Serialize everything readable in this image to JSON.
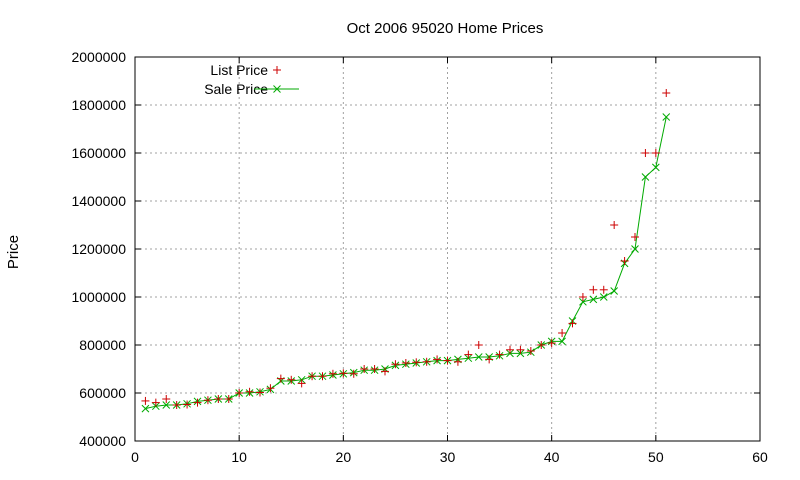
{
  "chart_data": {
    "type": "scatter",
    "title": "Oct 2006 95020 Home Prices",
    "xlabel": "",
    "ylabel": "Price",
    "xlim": [
      0,
      60
    ],
    "ylim": [
      400000,
      2000000
    ],
    "x_ticks": [
      0,
      10,
      20,
      30,
      40,
      50,
      60
    ],
    "y_ticks": [
      400000,
      600000,
      800000,
      1000000,
      1200000,
      1400000,
      1600000,
      1800000,
      2000000
    ],
    "grid": true,
    "legend_position": "top-left",
    "series": [
      {
        "name": "List Price",
        "style": "points",
        "marker": "+",
        "color": "#cc0000",
        "x": [
          1,
          2,
          3,
          4,
          5,
          6,
          7,
          8,
          9,
          10,
          11,
          12,
          13,
          14,
          15,
          16,
          17,
          18,
          19,
          20,
          21,
          22,
          23,
          24,
          25,
          26,
          27,
          28,
          29,
          30,
          31,
          32,
          33,
          34,
          35,
          36,
          37,
          38,
          39,
          40,
          41,
          42,
          43,
          44,
          45,
          46,
          47,
          48,
          49,
          50,
          51
        ],
        "y": [
          567000,
          560000,
          575000,
          550000,
          552000,
          560000,
          570000,
          575000,
          575000,
          600000,
          605000,
          602000,
          620000,
          660000,
          655000,
          640000,
          670000,
          670000,
          680000,
          682000,
          680000,
          700000,
          700000,
          690000,
          720000,
          725000,
          728000,
          730000,
          740000,
          735000,
          730000,
          760000,
          800000,
          740000,
          760000,
          780000,
          780000,
          775000,
          800000,
          808000,
          850000,
          890000,
          1000000,
          1030000,
          1030000,
          1300000,
          1150000,
          1250000,
          1600000,
          1600000,
          1850000
        ]
      },
      {
        "name": "Sale Price",
        "style": "linespoints",
        "marker": "x",
        "color": "#00aa00",
        "x": [
          1,
          2,
          3,
          4,
          5,
          6,
          7,
          8,
          9,
          10,
          11,
          12,
          13,
          14,
          15,
          16,
          17,
          18,
          19,
          20,
          21,
          22,
          23,
          24,
          25,
          26,
          27,
          28,
          29,
          30,
          31,
          32,
          33,
          34,
          35,
          36,
          37,
          38,
          39,
          40,
          41,
          42,
          43,
          44,
          45,
          46,
          47,
          48,
          49,
          50,
          51
        ],
        "y": [
          535000,
          545000,
          550000,
          550000,
          555000,
          565000,
          570000,
          575000,
          575000,
          600000,
          600000,
          605000,
          615000,
          650000,
          650000,
          655000,
          670000,
          670000,
          675000,
          680000,
          685000,
          695000,
          695000,
          700000,
          715000,
          720000,
          725000,
          730000,
          735000,
          735000,
          740000,
          745000,
          750000,
          750000,
          755000,
          765000,
          765000,
          770000,
          800000,
          815000,
          815000,
          900000,
          980000,
          990000,
          1000000,
          1025000,
          1140000,
          1200000,
          1500000,
          1540000,
          1750000
        ]
      }
    ]
  }
}
